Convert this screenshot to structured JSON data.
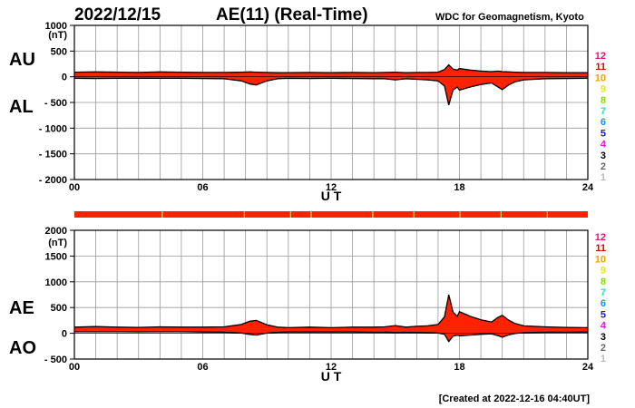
{
  "header": {
    "date": "2022/12/15",
    "title": "AE(11) (Real-Time)",
    "source": "WDC for Geomagnetism, Kyoto",
    "footer": "[Created at 2022-12-16 04:40UT]"
  },
  "legend": {
    "numbers": [
      "12",
      "11",
      "10",
      "9",
      "8",
      "7",
      "6",
      "5",
      "4",
      "3",
      "2",
      "1"
    ],
    "colors": [
      "#e0167a",
      "#e00000",
      "#ff9900",
      "#e6e600",
      "#7fe000",
      "#19e6c8",
      "#1a8cff",
      "#1a1acc",
      "#d916d9",
      "#000000",
      "#666666",
      "#bbbbbb"
    ]
  },
  "colors": {
    "fill": "#ff2200",
    "line": "#000000",
    "bar": "#ff2200",
    "bar_gap": "#ffcc66",
    "grid": "#999999"
  },
  "chart_data": [
    {
      "type": "area",
      "panel": "AU/AL",
      "labels": {
        "upper": "AU",
        "lower": "AL"
      },
      "unit_label": "(nT)",
      "xlabel": "U T",
      "xlim": [
        0,
        24
      ],
      "ylim": [
        -2000,
        1000
      ],
      "yticks": [
        1000,
        500,
        0,
        -500,
        -1000,
        -1500,
        -2000
      ],
      "ytick_labels": [
        "1000",
        "500",
        "0",
        "- 500",
        "- 1000",
        "- 1500",
        "- 2000"
      ],
      "xticks": [
        0,
        6,
        12,
        18,
        24
      ],
      "xtick_labels": [
        "00",
        "06",
        "12",
        "18",
        "24"
      ],
      "x_hours": [
        0,
        1,
        2,
        3,
        4,
        5,
        6,
        7,
        7.8,
        8.2,
        8.5,
        9,
        9.5,
        10,
        11,
        12,
        13,
        14,
        14.5,
        15,
        15.5,
        16,
        16.5,
        17,
        17.3,
        17.5,
        17.7,
        17.9,
        18,
        18.5,
        19,
        19.5,
        19.8,
        20,
        20.3,
        20.6,
        21,
        22,
        23,
        24
      ],
      "series": [
        {
          "key": "AU",
          "values": [
            90,
            95,
            90,
            85,
            95,
            90,
            85,
            85,
            90,
            95,
            90,
            85,
            80,
            80,
            85,
            80,
            85,
            80,
            85,
            90,
            80,
            85,
            85,
            90,
            140,
            230,
            150,
            130,
            160,
            130,
            110,
            100,
            110,
            100,
            95,
            90,
            85,
            85,
            80,
            80
          ]
        },
        {
          "key": "AL",
          "values": [
            -30,
            -35,
            -30,
            -30,
            -30,
            -30,
            -35,
            -40,
            -80,
            -140,
            -160,
            -80,
            -40,
            -30,
            -35,
            -30,
            -35,
            -40,
            -40,
            -60,
            -40,
            -50,
            -60,
            -80,
            -180,
            -550,
            -260,
            -200,
            -260,
            -200,
            -150,
            -120,
            -200,
            -250,
            -160,
            -100,
            -60,
            -40,
            -35,
            -30
          ]
        }
      ]
    },
    {
      "type": "area",
      "panel": "AE/AO",
      "labels": {
        "upper": "AE",
        "lower": "AO"
      },
      "unit_label": "(nT)",
      "xlabel": "U T",
      "xlim": [
        0,
        24
      ],
      "ylim": [
        -500,
        2000
      ],
      "yticks": [
        2000,
        1500,
        1000,
        500,
        0,
        -500
      ],
      "ytick_labels": [
        "2000",
        "1500",
        "1000",
        "500",
        "0",
        "- 500"
      ],
      "xticks": [
        0,
        6,
        12,
        18,
        24
      ],
      "xtick_labels": [
        "00",
        "06",
        "12",
        "18",
        "24"
      ],
      "x_hours": [
        0,
        1,
        2,
        3,
        4,
        5,
        6,
        7,
        7.8,
        8.2,
        8.5,
        9,
        9.5,
        10,
        11,
        12,
        13,
        14,
        14.5,
        15,
        15.5,
        16,
        16.5,
        17,
        17.3,
        17.5,
        17.7,
        17.9,
        18,
        18.5,
        19,
        19.5,
        19.8,
        20,
        20.3,
        20.6,
        21,
        22,
        23,
        24
      ],
      "series": [
        {
          "key": "AE",
          "values": [
            120,
            130,
            120,
            115,
            125,
            120,
            120,
            125,
            170,
            235,
            250,
            165,
            120,
            110,
            120,
            110,
            120,
            120,
            125,
            150,
            120,
            135,
            145,
            170,
            320,
            750,
            410,
            330,
            420,
            330,
            260,
            220,
            310,
            350,
            255,
            190,
            145,
            125,
            115,
            110
          ]
        },
        {
          "key": "AO",
          "values": [
            30,
            30,
            30,
            28,
            32,
            30,
            25,
            22,
            5,
            -22,
            -35,
            3,
            20,
            25,
            25,
            25,
            25,
            20,
            22,
            15,
            20,
            18,
            12,
            5,
            -20,
            -160,
            -55,
            -35,
            -50,
            -35,
            -20,
            -10,
            -45,
            -75,
            -32,
            -5,
            12,
            22,
            22,
            25
          ]
        }
      ]
    }
  ]
}
